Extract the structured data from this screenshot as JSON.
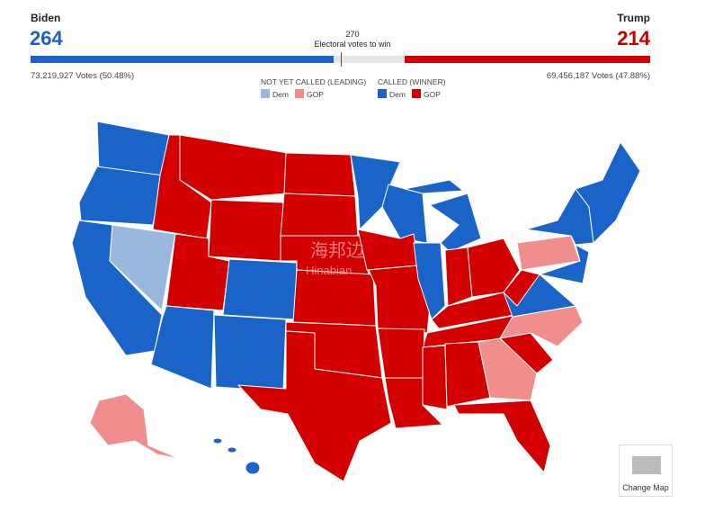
{
  "header": {
    "left_name": "Biden",
    "left_votes": 264,
    "left_popular": "73,219,927 Votes (50.48%)",
    "right_name": "Trump",
    "right_votes": 214,
    "right_popular": "69,456,187 Votes (47.88%)",
    "threshold": 270,
    "threshold_label": "Electoral votes to win"
  },
  "legend": {
    "not_called_title": "NOT YET CALLED (LEADING)",
    "not_called_dem": "Dem",
    "not_called_gop": "GOP",
    "called_title": "CALLED (WINNER)",
    "called_dem": "Dem",
    "called_gop": "GOP"
  },
  "watermark": {
    "cn": "海邦边",
    "en": "Hinabian"
  },
  "button": {
    "label": "Change Map"
  }
}
